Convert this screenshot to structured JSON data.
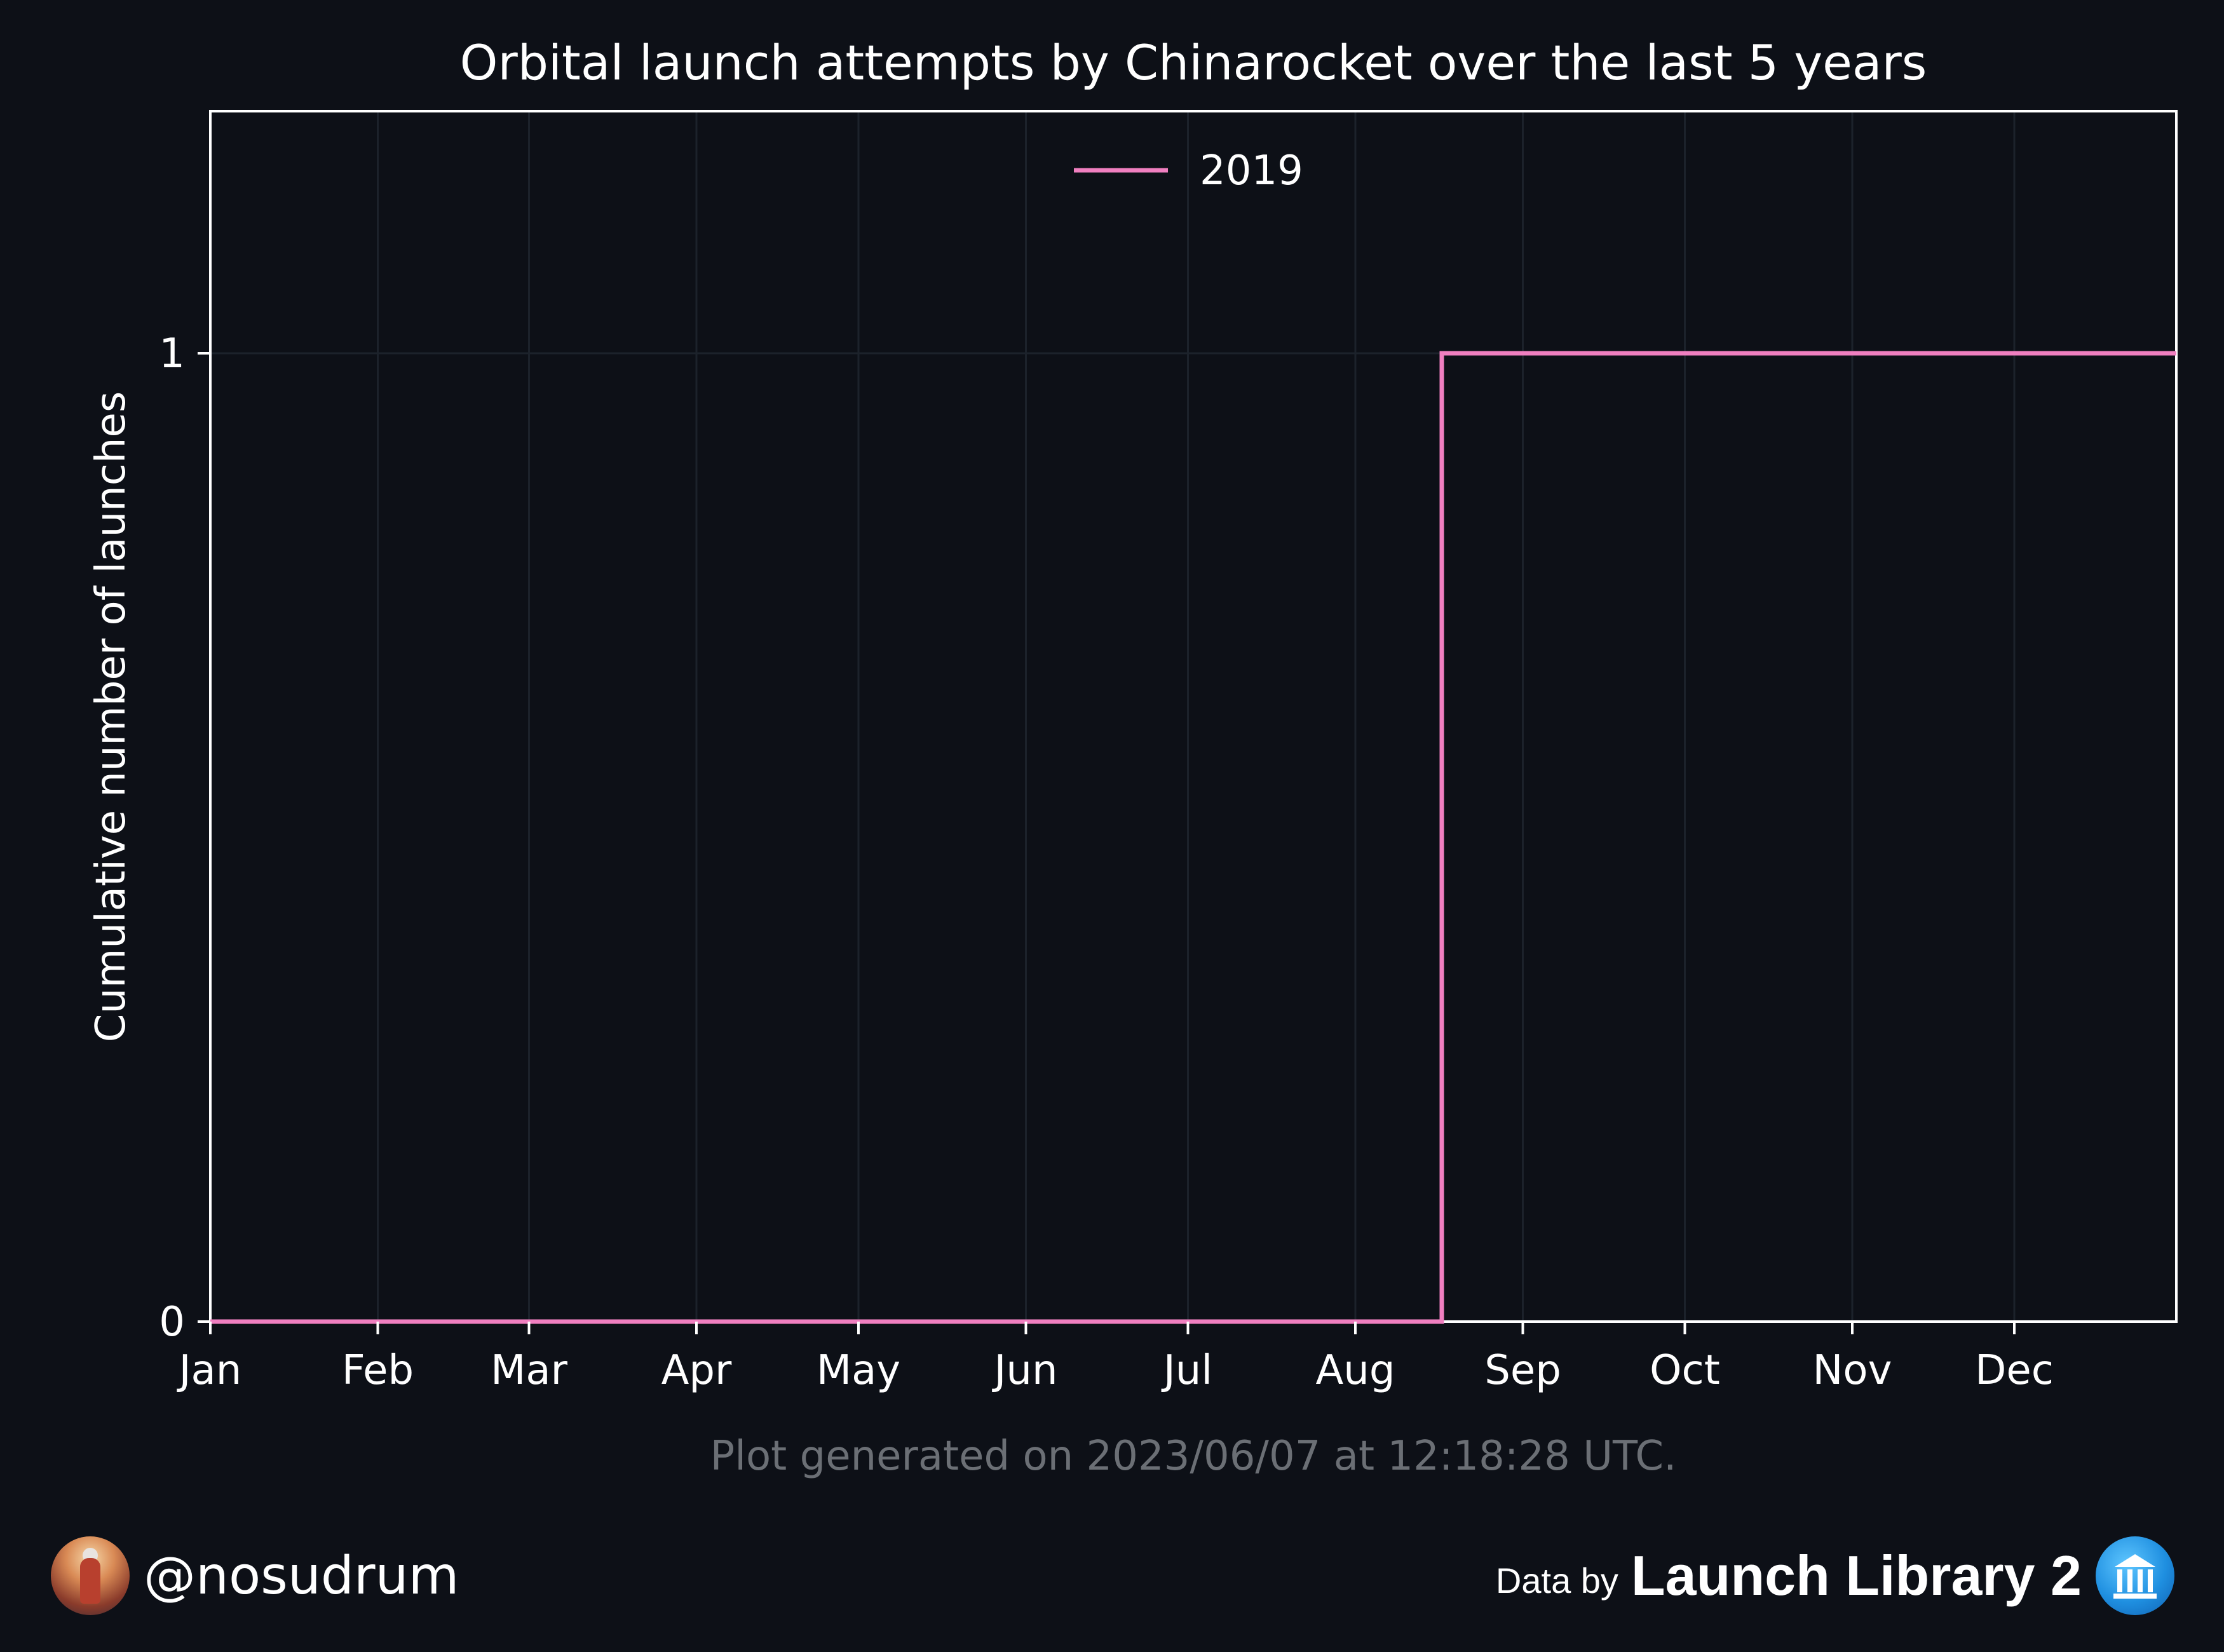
{
  "chart_data": {
    "type": "line",
    "step": true,
    "title": "Orbital launch attempts by Chinarocket over the last 5 years",
    "xlabel": "",
    "ylabel": "Cumulative number of launches",
    "x_ticks": [
      "Jan",
      "Feb",
      "Mar",
      "Apr",
      "May",
      "Jun",
      "Jul",
      "Aug",
      "Sep",
      "Oct",
      "Nov",
      "Dec"
    ],
    "y_ticks": [
      "0",
      "1"
    ],
    "xlim": [
      "01-01",
      "12-31"
    ],
    "ylim": [
      0,
      1.25
    ],
    "grid": true,
    "legend_position": "upper center",
    "series": [
      {
        "name": "2019",
        "color": "#f07fc0",
        "points": [
          {
            "x": "01-01",
            "y": 0
          },
          {
            "x": "08-17",
            "y": 0
          },
          {
            "x": "08-17",
            "y": 1
          },
          {
            "x": "12-31",
            "y": 1
          }
        ]
      }
    ],
    "note": "Plot generated on 2023/06/07 at 12:18:28 UTC."
  },
  "footer": {
    "handle": "@nosudrum",
    "avatar_icon": "astronaut-avatar-icon",
    "data_by": "Data by",
    "source": "Launch Library 2",
    "source_icon": "launch-library-logo-icon"
  },
  "colors": {
    "background": "#0d1017",
    "axes": "#ffffff",
    "grid": "#1c222b",
    "note": "#6b6f75"
  }
}
